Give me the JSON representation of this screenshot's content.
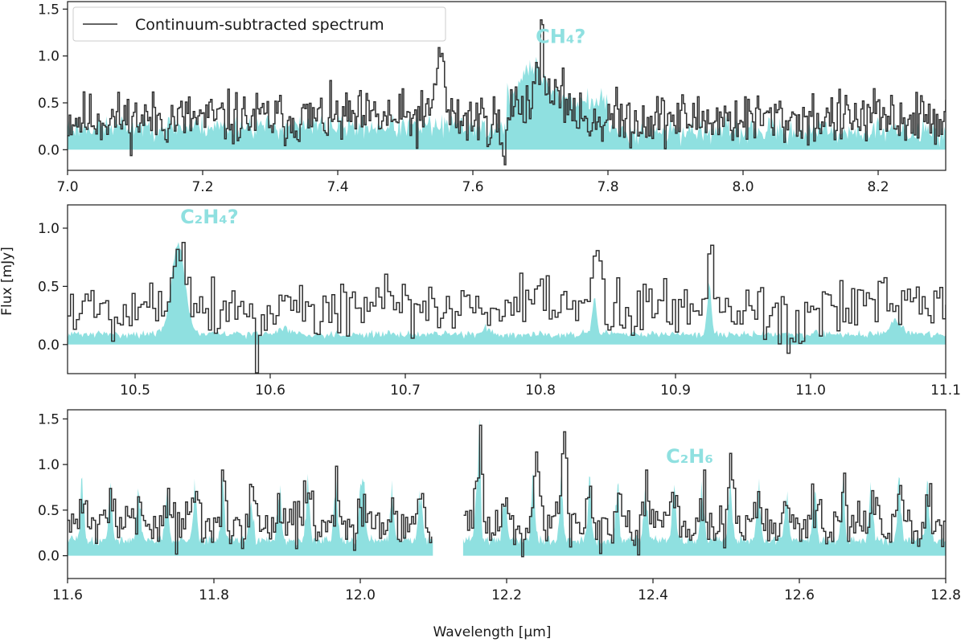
{
  "colors": {
    "model": "#8fe0e0",
    "data": "#303030",
    "axis": "#1a1a1a",
    "label": "#8fe0e0"
  },
  "xlabel": "Wavelength [μm]",
  "ylabel": "Flux [mJy]",
  "legend": {
    "label": "Continuum-subtracted spectrum",
    "location": "upper-left"
  },
  "chart_data": [
    {
      "type": "line",
      "panel": "top",
      "xlim": [
        7.0,
        8.3
      ],
      "ylim": [
        -0.22,
        1.58
      ],
      "xticks": [
        7.0,
        7.2,
        7.4,
        7.6,
        7.8,
        8.0,
        8.2
      ],
      "xtick_labels": [
        "7.0",
        "7.2",
        "7.4",
        "7.6",
        "7.8",
        "8.0",
        "8.2"
      ],
      "yticks": [
        0.0,
        0.5,
        1.0,
        1.5
      ],
      "ytick_labels": [
        "0.0",
        "0.5",
        "1.0",
        "1.5"
      ],
      "annotation": {
        "text": "CH₄?",
        "x": 7.73,
        "y": 1.14
      },
      "series": [
        {
          "name": "Continuum-subtracted spectrum",
          "style": "step",
          "x_range": [
            7.0,
            8.3
          ],
          "points": 560,
          "mean": 0.33,
          "noise": 0.22,
          "seed": 11,
          "features": [
            [
              7.55,
              0.006,
              0.75
            ],
            [
              7.7,
              0.006,
              0.6
            ],
            [
              7.645,
              0.004,
              -0.5
            ]
          ],
          "shift": [
            [
              7.65,
              7.75,
              0.18
            ]
          ],
          "gaps": []
        },
        {
          "name": "model",
          "style": "fill",
          "x_range": [
            7.0,
            8.3
          ],
          "points": 700,
          "mean": 0.2,
          "noise": 0.1,
          "seed": 23,
          "features": [
            [
              7.69,
              0.02,
              0.35
            ]
          ],
          "shift": [
            [
              7.0,
              7.62,
              0.05
            ],
            [
              7.65,
              7.8,
              0.32
            ]
          ],
          "gaps": []
        }
      ]
    },
    {
      "type": "line",
      "panel": "middle",
      "xlim": [
        10.45,
        11.1
      ],
      "ylim": [
        -0.25,
        1.2
      ],
      "xticks": [
        10.5,
        10.6,
        10.7,
        10.8,
        10.9,
        11.0,
        11.1
      ],
      "xtick_labels": [
        "10.5",
        "10.6",
        "10.7",
        "10.8",
        "10.9",
        "11.0",
        "11.1"
      ],
      "yticks": [
        0.0,
        0.5,
        1.0
      ],
      "ytick_labels": [
        "0.0",
        "0.5",
        "1.0"
      ],
      "annotation": {
        "text": "C₂H₄?",
        "x": 10.555,
        "y": 1.04
      },
      "series": [
        {
          "name": "Continuum-subtracted spectrum",
          "style": "step",
          "x_range": [
            10.45,
            11.1
          ],
          "points": 300,
          "mean": 0.32,
          "noise": 0.2,
          "seed": 5,
          "features": [
            [
              10.532,
              0.005,
              0.6
            ],
            [
              10.84,
              0.003,
              0.4
            ],
            [
              10.925,
              0.003,
              0.45
            ],
            [
              10.59,
              0.002,
              -0.45
            ],
            [
              10.985,
              0.004,
              -0.3
            ]
          ],
          "shift": [],
          "gaps": []
        },
        {
          "name": "model",
          "style": "fill",
          "x_range": [
            10.45,
            11.1
          ],
          "points": 650,
          "mean": 0.09,
          "noise": 0.025,
          "seed": 31,
          "features": [
            [
              10.532,
              0.005,
              0.78
            ],
            [
              10.84,
              0.0015,
              0.33
            ],
            [
              10.925,
              0.0015,
              0.42
            ],
            [
              11.063,
              0.004,
              0.12
            ],
            [
              10.76,
              0.003,
              0.05
            ],
            [
              10.61,
              0.004,
              0.06
            ]
          ],
          "shift": [],
          "gaps": []
        }
      ]
    },
    {
      "type": "line",
      "panel": "bottom",
      "xlim": [
        11.6,
        12.8
      ],
      "ylim": [
        -0.25,
        1.6
      ],
      "xticks": [
        11.6,
        11.8,
        12.0,
        12.2,
        12.4,
        12.6,
        12.8
      ],
      "xtick_labels": [
        "11.6",
        "11.8",
        "12.0",
        "12.2",
        "12.4",
        "12.6",
        "12.8"
      ],
      "yticks": [
        0.0,
        0.5,
        1.0,
        1.5
      ],
      "ytick_labels": [
        "0.0",
        "0.5",
        "1.0",
        "1.5"
      ],
      "annotation": {
        "text": "C₂H₆",
        "x": 12.45,
        "y": 1.02
      },
      "series": [
        {
          "name": "Continuum-subtracted spectrum",
          "style": "step",
          "x_range": [
            11.6,
            12.8
          ],
          "points": 440,
          "mean": 0.32,
          "noise": 0.2,
          "seed": 7,
          "periodic": {
            "start": 11.62,
            "step": 0.0385,
            "width": 0.004,
            "amp": 0.5
          },
          "features": [
            [
              12.163,
              0.002,
              1.1
            ],
            [
              12.278,
              0.003,
              0.8
            ],
            [
              12.242,
              0.003,
              0.7
            ]
          ],
          "shift": [],
          "gaps": [
            [
              12.1,
              12.14
            ]
          ]
        },
        {
          "name": "model",
          "style": "fill",
          "x_range": [
            11.6,
            12.8
          ],
          "points": 900,
          "mean": 0.17,
          "noise": 0.04,
          "seed": 41,
          "periodic": {
            "start": 11.62,
            "step": 0.0385,
            "width": 0.0025,
            "amp": 0.75
          },
          "features": [
            [
              12.163,
              0.0015,
              1.2
            ],
            [
              12.0,
              0.002,
              0.55
            ]
          ],
          "shift": [],
          "gaps": [
            [
              12.1,
              12.14
            ]
          ]
        }
      ]
    }
  ]
}
